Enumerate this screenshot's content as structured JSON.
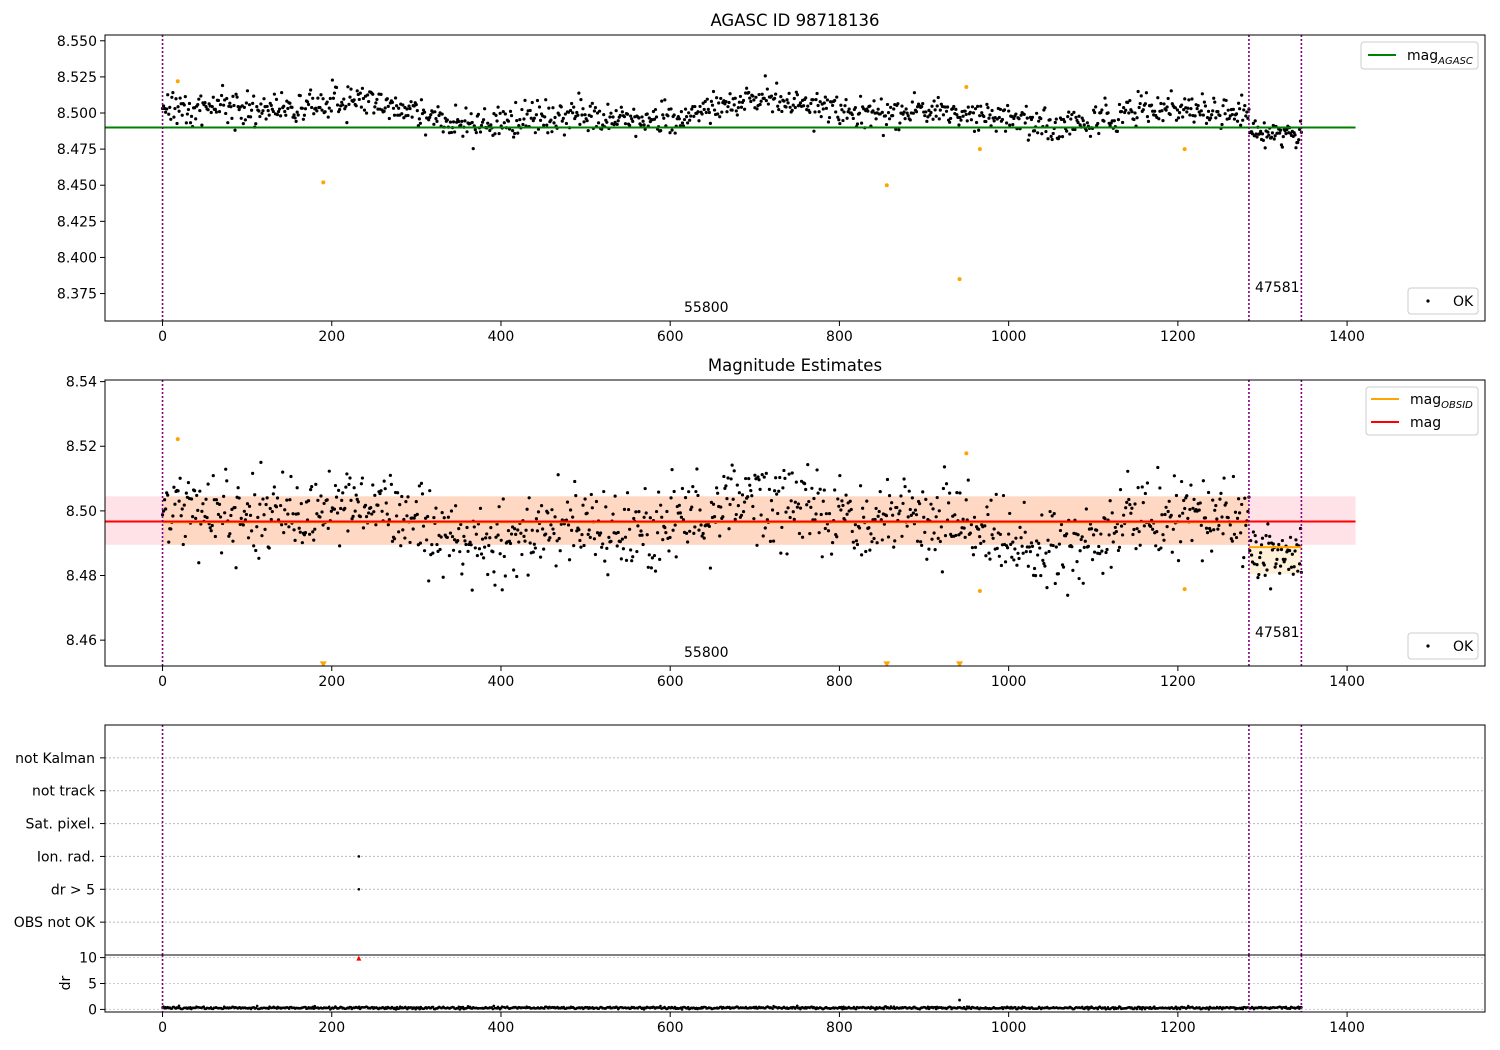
{
  "chart_data": [
    {
      "type": "scatter",
      "title": "AGASC ID 98718136",
      "xlim": [
        -68,
        1563
      ],
      "ylim": [
        8.356,
        8.554
      ],
      "x_ticks": [
        0,
        200,
        400,
        600,
        800,
        1000,
        1200,
        1400
      ],
      "y_ticks": [
        8.375,
        8.4,
        8.425,
        8.45,
        8.475,
        8.5,
        8.525,
        8.55
      ],
      "y_tick_labels": [
        "8.375",
        "8.400",
        "8.425",
        "8.450",
        "8.475",
        "8.500",
        "8.525",
        "8.550"
      ],
      "x_tick_labels": [
        "0",
        "200",
        "400",
        "600",
        "800",
        "1000",
        "1200",
        "1400"
      ],
      "vertical_lines": [
        0,
        1284,
        1346
      ],
      "obsid_labels": [
        {
          "x": 640,
          "y": 8.3595,
          "text": "55800"
        },
        {
          "x": 1315,
          "y": 8.3735,
          "text": "47581"
        }
      ],
      "reference_line": {
        "name": "mag_AGASC",
        "y": 8.49,
        "x_range": [
          -68,
          1410
        ],
        "color": "#008000"
      },
      "legend_entries": [
        {
          "label": "mag",
          "subscript": "AGASC"
        },
        {
          "label": "OK"
        }
      ],
      "legend_placement": [
        "top-right",
        "bottom-right"
      ],
      "series_ok": {
        "name": "OK",
        "segments": [
          {
            "x_start": 0,
            "x_end": 1284,
            "count": 1050,
            "base": 8.5,
            "amplitude": 0.006,
            "noise": 0.0055
          },
          {
            "x_start": 1285,
            "x_end": 1346,
            "count": 58,
            "base": 8.486,
            "amplitude": 0.0,
            "noise": 0.0045
          }
        ]
      },
      "outliers": {
        "color": "#ffa500",
        "x": [
          18,
          190,
          856,
          942,
          950,
          966,
          1208
        ],
        "y": [
          8.522,
          8.452,
          8.45,
          8.385,
          8.518,
          8.475,
          8.475
        ]
      },
      "colors": {
        "points": "#000000",
        "outlier": "#ffa500",
        "vline": "#800080",
        "agasc": "#008000"
      }
    },
    {
      "type": "scatter",
      "title": "Magnitude Estimates",
      "xlim": [
        -68,
        1563
      ],
      "ylim": [
        8.452,
        8.5405
      ],
      "x_ticks": [
        0,
        200,
        400,
        600,
        800,
        1000,
        1200,
        1400
      ],
      "x_tick_labels": [
        "0",
        "200",
        "400",
        "600",
        "800",
        "1000",
        "1200",
        "1400"
      ],
      "y_ticks": [
        8.46,
        8.48,
        8.5,
        8.52,
        8.54
      ],
      "y_tick_labels": [
        "8.46",
        "8.48",
        "8.50",
        "8.52",
        "8.54"
      ],
      "vertical_lines": [
        0,
        1284,
        1346
      ],
      "obsid_labels": [
        {
          "x": 640,
          "y": 8.4535,
          "text": "55800"
        },
        {
          "x": 1315,
          "y": 8.4605,
          "text": "47581"
        }
      ],
      "bands": [
        {
          "y_low": 8.4895,
          "y_high": 8.5045,
          "x_range": [
            -68,
            1410
          ],
          "color": "rgba(255,20,60,0.12)"
        },
        {
          "y_low": 8.4895,
          "y_high": 8.5045,
          "x_range": [
            0,
            1284
          ],
          "color": "rgba(255,160,0,0.15)"
        },
        {
          "y_low": 8.4805,
          "y_high": 8.4895,
          "x_range": [
            1284,
            1346
          ],
          "color": "rgba(255,160,0,0.15)"
        }
      ],
      "lines": [
        {
          "name": "mag_OBSID",
          "segments": [
            {
              "x_range": [
                0,
                1284
              ],
              "y": 8.4965
            },
            {
              "x_range": [
                1284,
                1346
              ],
              "y": 8.4888
            }
          ],
          "color": "#ffa500"
        },
        {
          "name": "mag",
          "segments": [
            {
              "x_range": [
                -68,
                1410
              ],
              "y": 8.4967
            }
          ],
          "color": "#ff0000"
        }
      ],
      "legend_entries": [
        {
          "label": "mag",
          "subscript": "OBSID"
        },
        {
          "label": "mag"
        },
        {
          "label": "OK"
        }
      ],
      "legend_placement": [
        "top-right",
        "bottom-right"
      ],
      "series_ok": {
        "name": "OK",
        "segments": [
          {
            "x_start": 0,
            "x_end": 1284,
            "count": 1050,
            "base": 8.4965,
            "amplitude": 0.005,
            "noise": 0.006
          },
          {
            "x_start": 1285,
            "x_end": 1346,
            "count": 58,
            "base": 8.486,
            "amplitude": 0.0,
            "noise": 0.0045
          }
        ]
      },
      "outliers": {
        "color": "#ffa500",
        "x": [
          18,
          950,
          966,
          1208
        ],
        "y": [
          8.5222,
          8.5178,
          8.4752,
          8.4758
        ]
      },
      "clipped_markers": {
        "color": "#ffa500",
        "x": [
          190,
          856,
          942
        ],
        "y": 8.4525
      },
      "colors": {
        "points": "#000000",
        "vline": "#800080"
      }
    },
    {
      "type": "scatter",
      "title": "",
      "xlim": [
        -68,
        1563
      ],
      "categories": [
        "OBS not OK",
        "dr > 5",
        "Ion. rad.",
        "Sat. pixel.",
        "not track",
        "not Kalman"
      ],
      "flag_points": [
        {
          "x": 232,
          "category": "Ion. rad."
        },
        {
          "x": 232,
          "category": "dr > 5"
        }
      ],
      "vertical_lines": [
        0,
        1284,
        1346
      ],
      "colors": {
        "vline": "#800080",
        "grid": "#bbbbbb"
      }
    },
    {
      "type": "scatter",
      "title": "",
      "ylabel": "dr",
      "xlim": [
        -68,
        1563
      ],
      "ylim": [
        -0.5,
        10.5
      ],
      "x_ticks": [
        0,
        200,
        400,
        600,
        800,
        1000,
        1200,
        1400
      ],
      "x_tick_labels": [
        "0",
        "200",
        "400",
        "600",
        "800",
        "1000",
        "1200",
        "1400"
      ],
      "y_ticks": [
        0,
        5,
        10
      ],
      "y_tick_labels": [
        "0",
        "5",
        "10"
      ],
      "vertical_lines": [
        0,
        1284,
        1346
      ],
      "series_ok": {
        "name": "dr",
        "base": 0.3,
        "noise": 0.12,
        "x_start": 0,
        "x_end": 1346,
        "count": 1108
      },
      "extras": [
        {
          "x": 942,
          "y": 1.8
        }
      ],
      "clipped_markers": {
        "color": "#ff0000",
        "x": [
          232
        ],
        "y": 9.9
      },
      "colors": {
        "points": "#000000"
      }
    }
  ]
}
